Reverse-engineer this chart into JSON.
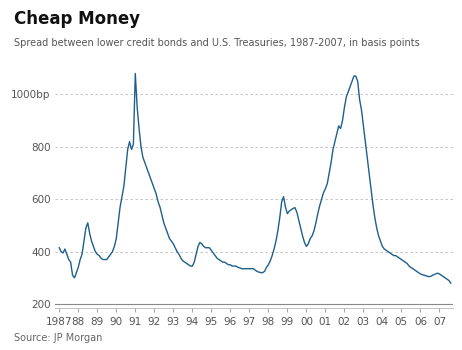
{
  "title": "Cheap Money",
  "subtitle": "Spread between lower credit bonds and U.S. Treasuries, 1987-2007, in basis points",
  "source": "Source: JP Morgan",
  "line_color": "#1f5f8b",
  "background_color": "#ffffff",
  "grid_color": "#bbbbbb",
  "yticks": [
    200,
    400,
    600,
    800,
    1000
  ],
  "ytick_labels": [
    "200",
    "400",
    "600",
    "800",
    "1000bp"
  ],
  "ylim": [
    185,
    1120
  ],
  "xlim": [
    1986.8,
    2007.7
  ],
  "xtick_positions": [
    1987,
    1988,
    1989,
    1990,
    1991,
    1992,
    1993,
    1994,
    1995,
    1996,
    1997,
    1998,
    1999,
    2000,
    2001,
    2002,
    2003,
    2004,
    2005,
    2006,
    2007
  ],
  "xtick_labels": [
    "1987",
    "88",
    "89",
    "90",
    "91",
    "92",
    "93",
    "94",
    "95",
    "96",
    "97",
    "98",
    "99",
    "00",
    "01",
    "02",
    "03",
    "04",
    "05",
    "06",
    "07"
  ],
  "years": [
    1987.0,
    1987.1,
    1987.2,
    1987.3,
    1987.4,
    1987.5,
    1987.6,
    1987.7,
    1987.8,
    1987.9,
    1988.0,
    1988.1,
    1988.2,
    1988.3,
    1988.4,
    1988.5,
    1988.6,
    1988.7,
    1988.8,
    1988.9,
    1989.0,
    1989.1,
    1989.2,
    1989.3,
    1989.4,
    1989.5,
    1989.6,
    1989.7,
    1989.8,
    1989.9,
    1990.0,
    1990.1,
    1990.2,
    1990.3,
    1990.4,
    1990.5,
    1990.6,
    1990.7,
    1990.8,
    1990.9,
    1991.0,
    1991.1,
    1991.2,
    1991.3,
    1991.4,
    1991.5,
    1991.6,
    1991.7,
    1991.8,
    1991.9,
    1992.0,
    1992.1,
    1992.2,
    1992.3,
    1992.4,
    1992.5,
    1992.6,
    1992.7,
    1992.8,
    1992.9,
    1993.0,
    1993.1,
    1993.2,
    1993.3,
    1993.4,
    1993.5,
    1993.6,
    1993.7,
    1993.8,
    1993.9,
    1994.0,
    1994.1,
    1994.2,
    1994.3,
    1994.4,
    1994.5,
    1994.6,
    1994.7,
    1994.8,
    1994.9,
    1995.0,
    1995.1,
    1995.2,
    1995.3,
    1995.4,
    1995.5,
    1995.6,
    1995.7,
    1995.8,
    1995.9,
    1996.0,
    1996.1,
    1996.2,
    1996.3,
    1996.4,
    1996.5,
    1996.6,
    1996.7,
    1996.8,
    1996.9,
    1997.0,
    1997.1,
    1997.2,
    1997.3,
    1997.4,
    1997.5,
    1997.6,
    1997.7,
    1997.8,
    1997.9,
    1998.0,
    1998.1,
    1998.2,
    1998.3,
    1998.4,
    1998.5,
    1998.6,
    1998.7,
    1998.8,
    1998.9,
    1999.0,
    1999.1,
    1999.2,
    1999.3,
    1999.4,
    1999.5,
    1999.6,
    1999.7,
    1999.8,
    1999.9,
    2000.0,
    2000.1,
    2000.2,
    2000.3,
    2000.4,
    2000.5,
    2000.6,
    2000.7,
    2000.8,
    2000.9,
    2001.0,
    2001.1,
    2001.2,
    2001.3,
    2001.4,
    2001.5,
    2001.6,
    2001.7,
    2001.8,
    2001.9,
    2002.0,
    2002.1,
    2002.2,
    2002.3,
    2002.4,
    2002.5,
    2002.6,
    2002.7,
    2002.8,
    2002.9,
    2003.0,
    2003.1,
    2003.2,
    2003.3,
    2003.4,
    2003.5,
    2003.6,
    2003.7,
    2003.8,
    2003.9,
    2004.0,
    2004.1,
    2004.2,
    2004.3,
    2004.4,
    2004.5,
    2004.6,
    2004.7,
    2004.8,
    2004.9,
    2005.0,
    2005.1,
    2005.2,
    2005.3,
    2005.4,
    2005.5,
    2005.6,
    2005.7,
    2005.8,
    2005.9,
    2006.0,
    2006.1,
    2006.2,
    2006.3,
    2006.4,
    2006.5,
    2006.6,
    2006.7,
    2006.8,
    2006.9,
    2007.0,
    2007.1,
    2007.2,
    2007.3,
    2007.4,
    2007.5,
    2007.6
  ],
  "values": [
    415,
    400,
    395,
    410,
    390,
    370,
    360,
    310,
    300,
    320,
    340,
    370,
    390,
    440,
    490,
    510,
    470,
    440,
    420,
    400,
    390,
    385,
    375,
    370,
    370,
    370,
    380,
    390,
    400,
    420,
    450,
    510,
    570,
    610,
    650,
    720,
    790,
    820,
    790,
    810,
    1080,
    950,
    870,
    800,
    760,
    740,
    720,
    700,
    680,
    660,
    640,
    620,
    590,
    570,
    540,
    510,
    490,
    470,
    450,
    440,
    430,
    415,
    400,
    390,
    375,
    365,
    360,
    355,
    350,
    345,
    345,
    360,
    390,
    420,
    435,
    430,
    420,
    415,
    415,
    415,
    405,
    395,
    385,
    375,
    370,
    365,
    360,
    360,
    355,
    350,
    350,
    345,
    345,
    345,
    340,
    338,
    335,
    335,
    335,
    335,
    335,
    335,
    335,
    330,
    325,
    322,
    320,
    320,
    325,
    340,
    350,
    365,
    385,
    410,
    440,
    480,
    530,
    590,
    610,
    570,
    545,
    555,
    560,
    565,
    568,
    550,
    520,
    490,
    460,
    435,
    420,
    430,
    450,
    460,
    480,
    510,
    545,
    575,
    600,
    625,
    640,
    660,
    700,
    740,
    790,
    820,
    850,
    880,
    870,
    900,
    950,
    990,
    1010,
    1030,
    1050,
    1070,
    1070,
    1050,
    980,
    940,
    880,
    820,
    760,
    700,
    640,
    580,
    530,
    490,
    460,
    440,
    420,
    410,
    405,
    400,
    395,
    390,
    385,
    385,
    380,
    375,
    370,
    365,
    360,
    355,
    345,
    340,
    335,
    330,
    325,
    320,
    315,
    312,
    310,
    308,
    305,
    305,
    308,
    312,
    315,
    318,
    315,
    310,
    305,
    300,
    295,
    290,
    280
  ]
}
